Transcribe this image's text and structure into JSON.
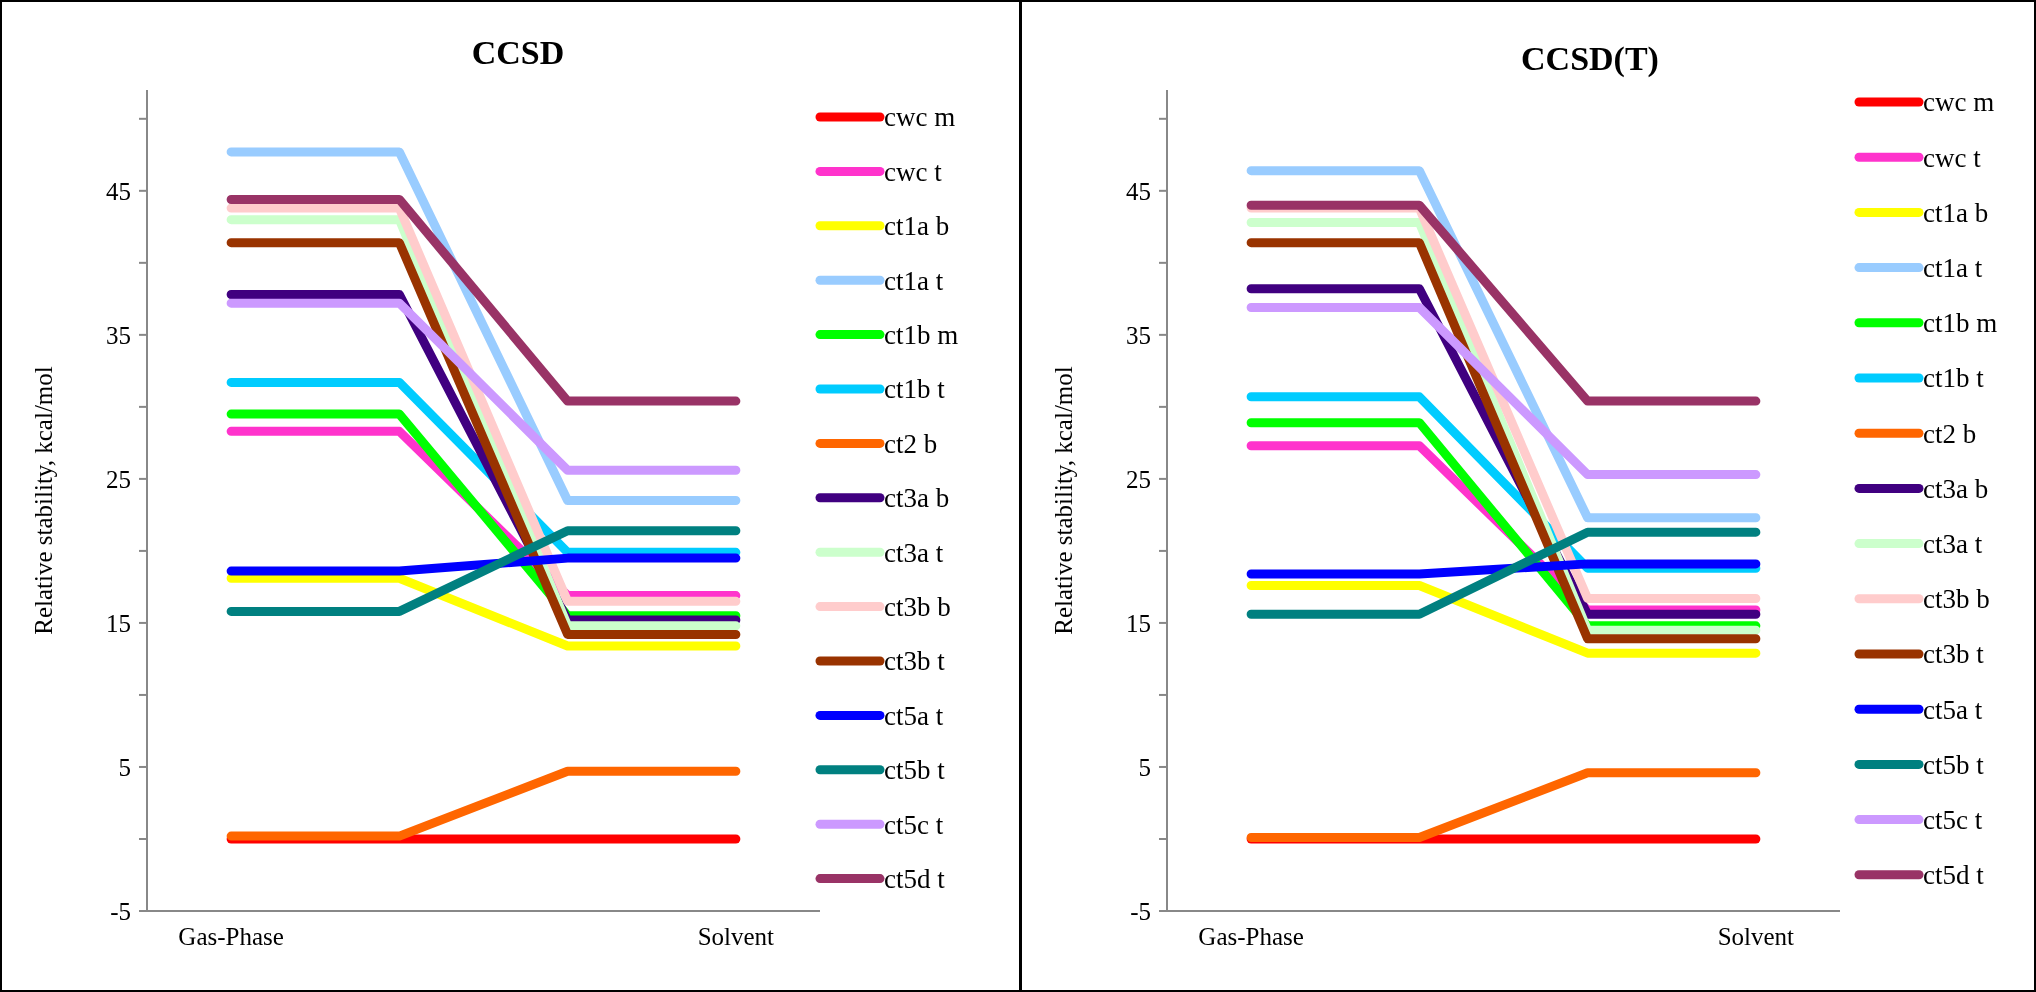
{
  "chart_data": [
    {
      "type": "line",
      "title": "CCSD",
      "ylabel": "Relative stability, kcal/mol",
      "categories": [
        "Gas-Phase",
        null,
        null,
        "Solvent"
      ],
      "ylim": [
        -5,
        52
      ],
      "yticks": [
        -5,
        {
          "value": 0,
          "label": null
        },
        5,
        {
          "value": 10,
          "label": null
        },
        15,
        {
          "value": 20,
          "label": null
        },
        25,
        {
          "value": 30,
          "label": null
        },
        35,
        {
          "value": 40,
          "label": null
        },
        45,
        {
          "value": 50,
          "label": null
        }
      ],
      "grid": false,
      "legend": "right",
      "marker": "none",
      "line_style": "solid",
      "series": [
        {
          "name": "cwc m",
          "color": "#ff0000",
          "values": [
            0,
            0,
            0,
            0
          ]
        },
        {
          "name": "cwc t",
          "color": "#ff33cc",
          "values": [
            28.3,
            28.3,
            16.9,
            16.9
          ]
        },
        {
          "name": "ct1a b",
          "color": "#ffff00",
          "values": [
            18.1,
            18.1,
            13.4,
            13.4
          ]
        },
        {
          "name": "ct1a t",
          "color": "#99ccff",
          "values": [
            47.7,
            47.7,
            23.5,
            23.5
          ]
        },
        {
          "name": "ct1b m",
          "color": "#00ff00",
          "values": [
            29.5,
            29.5,
            15.5,
            15.5
          ]
        },
        {
          "name": "ct1b t",
          "color": "#00ccff",
          "values": [
            31.7,
            31.7,
            19.9,
            19.9
          ]
        },
        {
          "name": "ct2 b",
          "color": "#ff6600",
          "values": [
            0.2,
            0.2,
            4.7,
            4.7
          ]
        },
        {
          "name": "ct3a b",
          "color": "#400080",
          "values": [
            37.8,
            37.8,
            15.2,
            15.2
          ]
        },
        {
          "name": "ct3a t",
          "color": "#ccffcc",
          "values": [
            43.0,
            43.0,
            14.8,
            14.8
          ]
        },
        {
          "name": "ct3b b",
          "color": "#ffcccc",
          "values": [
            43.8,
            43.8,
            16.5,
            16.5
          ]
        },
        {
          "name": "ct3b t",
          "color": "#993300",
          "values": [
            41.4,
            41.4,
            14.2,
            14.2
          ]
        },
        {
          "name": "ct5a t",
          "color": "#0000ff",
          "values": [
            18.6,
            18.6,
            19.5,
            19.5
          ]
        },
        {
          "name": "ct5b t",
          "color": "#008080",
          "values": [
            15.8,
            15.8,
            21.4,
            21.4
          ]
        },
        {
          "name": "ct5c t",
          "color": "#cc99ff",
          "values": [
            37.2,
            37.2,
            25.6,
            25.6
          ]
        },
        {
          "name": "ct5d t",
          "color": "#993366",
          "values": [
            44.4,
            44.4,
            30.4,
            30.4
          ]
        }
      ]
    },
    {
      "type": "line",
      "title": "CCSD(T)",
      "ylabel": "Relative stability, kcal/mol",
      "categories": [
        "Gas-Phase",
        null,
        null,
        "Solvent"
      ],
      "ylim": [
        -5,
        52
      ],
      "yticks": [
        -5,
        {
          "value": 0,
          "label": null
        },
        5,
        {
          "value": 10,
          "label": null
        },
        15,
        {
          "value": 20,
          "label": null
        },
        25,
        {
          "value": 30,
          "label": null
        },
        35,
        {
          "value": 40,
          "label": null
        },
        45,
        {
          "value": 50,
          "label": null
        }
      ],
      "grid": false,
      "legend": "right",
      "marker": "none",
      "line_style": "solid",
      "series": [
        {
          "name": "cwc m",
          "color": "#ff0000",
          "values": [
            0,
            0,
            0,
            0
          ]
        },
        {
          "name": "cwc t",
          "color": "#ff33cc",
          "values": [
            27.3,
            27.3,
            15.9,
            15.9
          ]
        },
        {
          "name": "ct1a b",
          "color": "#ffff00",
          "values": [
            17.6,
            17.6,
            12.9,
            12.9
          ]
        },
        {
          "name": "ct1a t",
          "color": "#99ccff",
          "values": [
            46.4,
            46.4,
            22.3,
            22.3
          ]
        },
        {
          "name": "ct1b m",
          "color": "#00ff00",
          "values": [
            28.9,
            28.9,
            14.8,
            14.8
          ]
        },
        {
          "name": "ct1b t",
          "color": "#00ccff",
          "values": [
            30.7,
            30.7,
            18.8,
            18.8
          ]
        },
        {
          "name": "ct2 b",
          "color": "#ff6600",
          "values": [
            0.1,
            0.1,
            4.6,
            4.6
          ]
        },
        {
          "name": "ct3a b",
          "color": "#400080",
          "values": [
            38.2,
            38.2,
            15.6,
            15.6
          ]
        },
        {
          "name": "ct3a t",
          "color": "#ccffcc",
          "values": [
            42.8,
            42.8,
            14.5,
            14.5
          ]
        },
        {
          "name": "ct3b b",
          "color": "#ffcccc",
          "values": [
            43.8,
            43.8,
            16.7,
            16.7
          ]
        },
        {
          "name": "ct3b t",
          "color": "#993300",
          "values": [
            41.4,
            41.4,
            13.9,
            13.9
          ]
        },
        {
          "name": "ct5a t",
          "color": "#0000ff",
          "values": [
            18.4,
            18.4,
            19.1,
            19.1
          ]
        },
        {
          "name": "ct5b t",
          "color": "#008080",
          "values": [
            15.6,
            15.6,
            21.3,
            21.3
          ]
        },
        {
          "name": "ct5c t",
          "color": "#cc99ff",
          "values": [
            36.9,
            36.9,
            25.3,
            25.3
          ]
        },
        {
          "name": "ct5d t",
          "color": "#993366",
          "values": [
            44.0,
            44.0,
            30.4,
            30.4
          ]
        }
      ]
    }
  ]
}
